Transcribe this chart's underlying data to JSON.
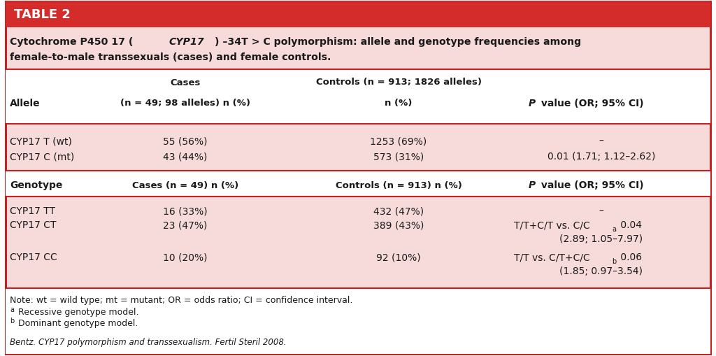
{
  "title_banner_text": "TABLE 2",
  "title_banner_bg": "#d42b2b",
  "title_banner_text_color": "#ffffff",
  "table_bg_pink": "#f7dada",
  "table_bg_white": "#ffffff",
  "border_color": "#c82020",
  "outer_bg": "#ffffff",
  "text_color": "#1a1a1a",
  "caption_line1": "Cytochrome P450 17 (CYP17) –34T > C polymorphism: allele and genotype frequencies among",
  "caption_line2": "female-to-male transsexuals (cases) and female controls.",
  "allele_rows": [
    [
      "CYP17 T (wt)",
      "55 (56%)",
      "1253 (69%)",
      "–"
    ],
    [
      "CYP17 C (mt)",
      "43 (44%)",
      "573 (31%)",
      "0.01 (1.71; 1.12–2.62)"
    ]
  ],
  "genotype_rows_col0": [
    "CYP17 TT",
    "CYP17 CT",
    "CYP17 CC"
  ],
  "genotype_rows_col1": [
    "16 (33%)",
    "23 (47%)",
    "10 (20%)"
  ],
  "genotype_rows_col2": [
    "432 (47%)",
    "389 (43%)",
    "92 (10%)"
  ],
  "note_line1": "Note: wt = wild type; mt = mutant; OR = odds ratio; CI = confidence interval.",
  "note_line2_super": "a",
  "note_line2_text": " Recessive genotype model.",
  "note_line3_super": "b",
  "note_line3_text": " Dominant genotype model.",
  "footnote": "Bentz. CYP17 polymorphism and transsexualism. Fertil Steril 2008."
}
